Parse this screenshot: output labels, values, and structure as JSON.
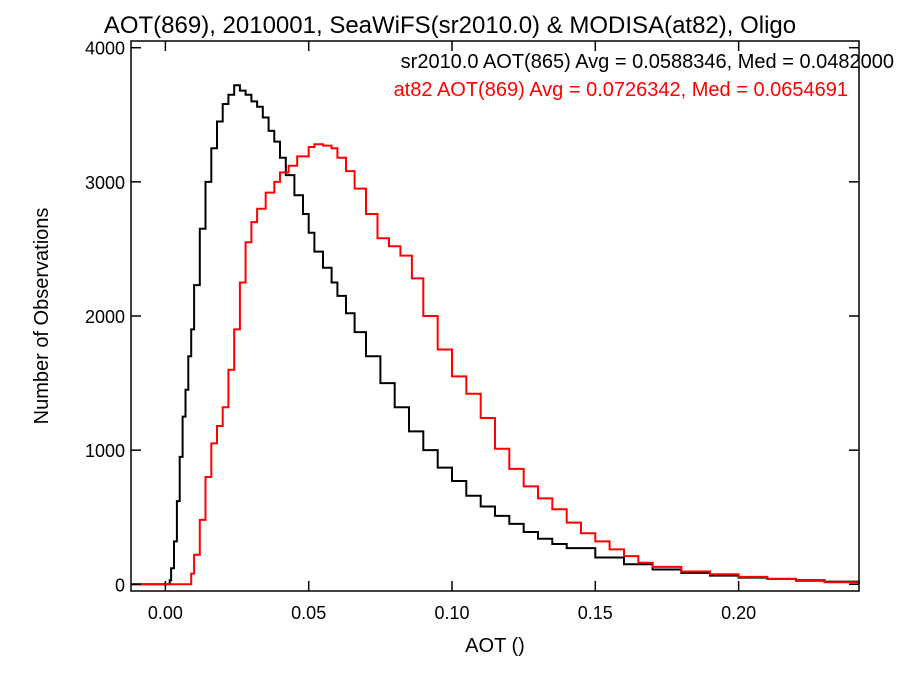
{
  "chart_data": {
    "type": "line",
    "title": "AOT(869), 2010001, SeaWiFS(sr2010.0) & MODISA(at82), Oligo",
    "xlabel": "AOT ()",
    "ylabel": "Number of Observations",
    "xlim": [
      -0.012,
      0.242
    ],
    "ylim": [
      -50,
      4050
    ],
    "x_ticks": [
      {
        "value": 0.0,
        "label": "0.00"
      },
      {
        "value": 0.05,
        "label": "0.05"
      },
      {
        "value": 0.1,
        "label": "0.10"
      },
      {
        "value": 0.15,
        "label": "0.15"
      },
      {
        "value": 0.2,
        "label": "0.20"
      }
    ],
    "y_ticks": [
      {
        "value": 0,
        "label": "0"
      },
      {
        "value": 1000,
        "label": "1000"
      },
      {
        "value": 2000,
        "label": "2000"
      },
      {
        "value": 3000,
        "label": "3000"
      },
      {
        "value": 4000,
        "label": "4000"
      }
    ],
    "legend": [
      {
        "text": "sr2010.0 AOT(865) Avg = 0.0588346, Med = 0.0482000",
        "color": "#000000"
      },
      {
        "text": "at82 AOT(869) Avg = 0.0726342, Med = 0.0654691",
        "color": "#ff0000"
      }
    ],
    "legend_position": "top-right",
    "series": [
      {
        "color": "#000000",
        "x": [
          -0.012,
          0.0,
          0.001,
          0.0015,
          0.002,
          0.003,
          0.004,
          0.005,
          0.006,
          0.007,
          0.008,
          0.009,
          0.01,
          0.012,
          0.014,
          0.016,
          0.018,
          0.02,
          0.022,
          0.024,
          0.026,
          0.028,
          0.03,
          0.032,
          0.034,
          0.036,
          0.038,
          0.04,
          0.042,
          0.045,
          0.048,
          0.05,
          0.052,
          0.055,
          0.058,
          0.06,
          0.063,
          0.066,
          0.07,
          0.075,
          0.08,
          0.085,
          0.09,
          0.095,
          0.1,
          0.105,
          0.11,
          0.115,
          0.12,
          0.125,
          0.13,
          0.135,
          0.14,
          0.15,
          0.16,
          0.17,
          0.18,
          0.19,
          0.2,
          0.21,
          0.22,
          0.23,
          0.242
        ],
        "y": [
          0,
          0,
          0,
          30,
          120,
          320,
          620,
          950,
          1250,
          1450,
          1700,
          1900,
          2230,
          2650,
          3000,
          3250,
          3450,
          3580,
          3650,
          3720,
          3680,
          3650,
          3600,
          3560,
          3480,
          3380,
          3300,
          3180,
          3050,
          2900,
          2760,
          2620,
          2480,
          2360,
          2250,
          2150,
          2020,
          1880,
          1700,
          1500,
          1320,
          1140,
          1000,
          870,
          770,
          660,
          580,
          510,
          450,
          390,
          340,
          300,
          270,
          200,
          150,
          110,
          85,
          65,
          50,
          40,
          30,
          20,
          10
        ]
      },
      {
        "color": "#ff0000",
        "x": [
          -0.012,
          0.008,
          0.009,
          0.01,
          0.012,
          0.014,
          0.016,
          0.018,
          0.02,
          0.022,
          0.024,
          0.026,
          0.028,
          0.03,
          0.032,
          0.035,
          0.038,
          0.04,
          0.043,
          0.046,
          0.05,
          0.052,
          0.055,
          0.058,
          0.06,
          0.063,
          0.066,
          0.07,
          0.074,
          0.078,
          0.082,
          0.086,
          0.09,
          0.095,
          0.1,
          0.105,
          0.11,
          0.115,
          0.12,
          0.125,
          0.13,
          0.135,
          0.14,
          0.145,
          0.15,
          0.155,
          0.16,
          0.165,
          0.17,
          0.18,
          0.19,
          0.2,
          0.21,
          0.22,
          0.23,
          0.242
        ],
        "y": [
          0,
          0,
          80,
          220,
          480,
          800,
          1050,
          1180,
          1320,
          1600,
          1900,
          2250,
          2550,
          2700,
          2800,
          2920,
          3000,
          3070,
          3120,
          3190,
          3260,
          3280,
          3270,
          3250,
          3180,
          3080,
          2950,
          2760,
          2580,
          2520,
          2450,
          2280,
          2000,
          1750,
          1550,
          1420,
          1240,
          1010,
          860,
          730,
          640,
          560,
          460,
          380,
          320,
          260,
          210,
          160,
          130,
          95,
          75,
          55,
          40,
          25,
          15,
          5
        ]
      }
    ]
  }
}
